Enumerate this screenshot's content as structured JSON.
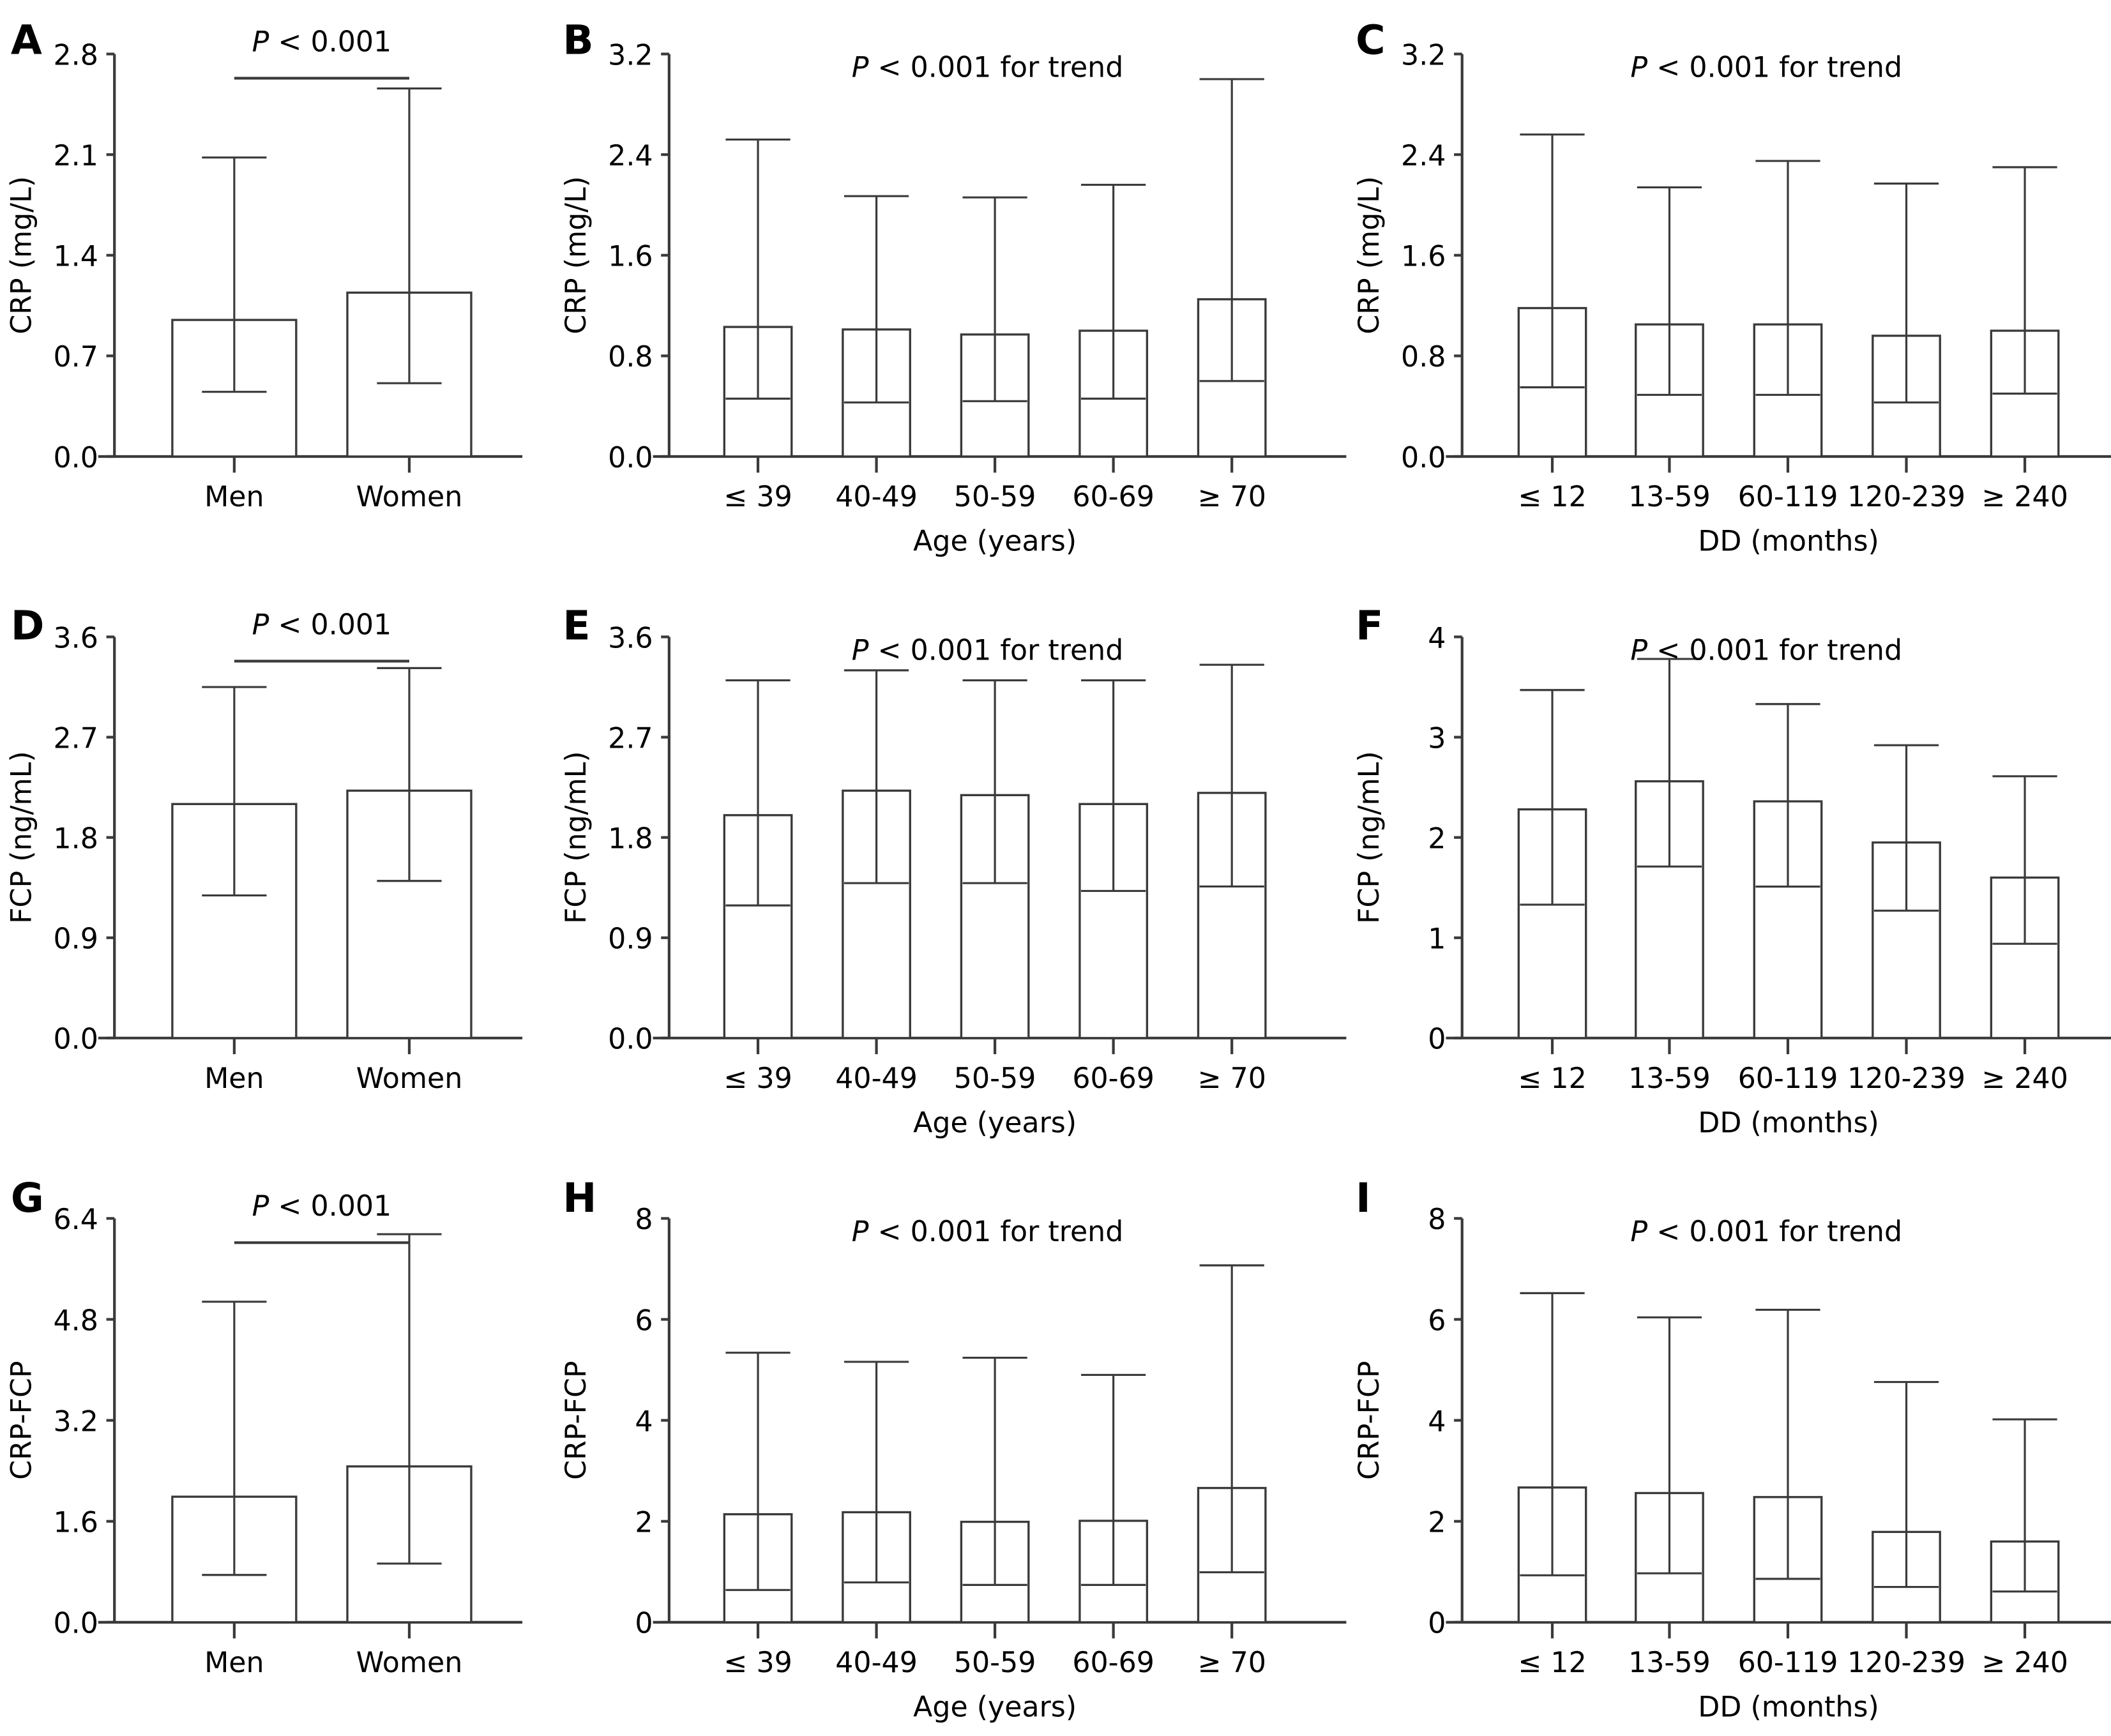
{
  "chart_data": [
    {
      "panel": "A",
      "type": "bar",
      "categories": [
        "Men",
        "Women"
      ],
      "values": [
        0.95,
        1.14
      ],
      "error_low": [
        0.45,
        0.51
      ],
      "error_high": [
        2.08,
        2.56
      ],
      "ylabel": "CRP (mg/L)",
      "xlabel": "",
      "yticks": [
        "0.0",
        "0.7",
        "1.4",
        "2.1",
        "2.8"
      ],
      "ylim": [
        0,
        2.8
      ],
      "annotation": {
        "p_italic": "P",
        "text": " < 0.001",
        "bracket": true
      }
    },
    {
      "panel": "B",
      "type": "bar",
      "categories": [
        "≤ 39",
        "40-49",
        "50-59",
        "60-69",
        "≥ 70"
      ],
      "values": [
        1.03,
        1.01,
        0.97,
        1.0,
        1.25
      ],
      "error_low": [
        0.46,
        0.43,
        0.44,
        0.46,
        0.6
      ],
      "error_high": [
        2.52,
        2.07,
        2.06,
        2.16,
        3.0
      ],
      "ylabel": "CRP (mg/L)",
      "xlabel": "Age (years)",
      "yticks": [
        "0.0",
        "0.8",
        "1.6",
        "2.4",
        "3.2"
      ],
      "ylim": [
        0,
        3.2
      ],
      "annotation": {
        "p_italic": "P",
        "text": " < 0.001 for trend",
        "bracket": false
      }
    },
    {
      "panel": "C",
      "type": "bar",
      "categories": [
        "≤ 12",
        "13-59",
        "60-119",
        "120-239",
        "≥ 240"
      ],
      "values": [
        1.18,
        1.05,
        1.05,
        0.96,
        1.0
      ],
      "error_low": [
        0.55,
        0.49,
        0.49,
        0.43,
        0.5
      ],
      "error_high": [
        2.56,
        2.14,
        2.35,
        2.17,
        2.3
      ],
      "ylabel": "CRP (mg/L)",
      "xlabel": "DD (months)",
      "yticks": [
        "0.0",
        "0.8",
        "1.6",
        "2.4",
        "3.2"
      ],
      "ylim": [
        0,
        3.2
      ],
      "annotation": {
        "p_italic": "P",
        "text": " < 0.001 for trend",
        "bracket": false
      }
    },
    {
      "panel": "D",
      "type": "bar",
      "categories": [
        "Men",
        "Women"
      ],
      "values": [
        2.1,
        2.22
      ],
      "error_low": [
        1.28,
        1.41
      ],
      "error_high": [
        3.15,
        3.32
      ],
      "ylabel": "FCP (ng/mL)",
      "xlabel": "",
      "yticks": [
        "0.0",
        "0.9",
        "1.8",
        "2.7",
        "3.6"
      ],
      "ylim": [
        0,
        3.6
      ],
      "annotation": {
        "p_italic": "P",
        "text": " < 0.001",
        "bracket": true
      }
    },
    {
      "panel": "E",
      "type": "bar",
      "categories": [
        "≤ 39",
        "40-49",
        "50-59",
        "60-69",
        "≥ 70"
      ],
      "values": [
        2.0,
        2.22,
        2.18,
        2.1,
        2.2
      ],
      "error_low": [
        1.19,
        1.39,
        1.39,
        1.32,
        1.36
      ],
      "error_high": [
        3.21,
        3.3,
        3.21,
        3.21,
        3.35
      ],
      "ylabel": "FCP (ng/mL)",
      "xlabel": "Age (years)",
      "yticks": [
        "0.0",
        "0.9",
        "1.8",
        "2.7",
        "3.6"
      ],
      "ylim": [
        0,
        3.6
      ],
      "annotation": {
        "p_italic": "P",
        "text": " < 0.001 for trend",
        "bracket": false
      }
    },
    {
      "panel": "F",
      "type": "bar",
      "categories": [
        "≤ 12",
        "13-59",
        "60-119",
        "120-239",
        "≥ 240"
      ],
      "values": [
        2.28,
        2.56,
        2.36,
        1.95,
        1.6
      ],
      "error_low": [
        1.33,
        1.71,
        1.51,
        1.27,
        0.94
      ],
      "error_high": [
        3.47,
        3.78,
        3.33,
        2.92,
        2.61
      ],
      "ylabel": "FCP (ng/mL)",
      "xlabel": "DD (months)",
      "yticks": [
        "0",
        "1",
        "2",
        "3",
        "4"
      ],
      "ylim": [
        0,
        4
      ],
      "annotation": {
        "p_italic": "P",
        "text": " < 0.001 for trend",
        "bracket": false
      }
    },
    {
      "panel": "G",
      "type": "bar",
      "categories": [
        "Men",
        "Women"
      ],
      "values": [
        1.99,
        2.47
      ],
      "error_low": [
        0.75,
        0.93
      ],
      "error_high": [
        5.08,
        6.15
      ],
      "ylabel": "CRP-FCP",
      "xlabel": "",
      "yticks": [
        "0.0",
        "1.6",
        "3.2",
        "4.8",
        "6.4"
      ],
      "ylim": [
        0,
        6.4
      ],
      "annotation": {
        "p_italic": "P",
        "text": " < 0.001",
        "bracket": true
      }
    },
    {
      "panel": "H",
      "type": "bar",
      "categories": [
        "≤ 39",
        "40-49",
        "50-59",
        "60-69",
        "≥ 70"
      ],
      "values": [
        2.14,
        2.18,
        1.99,
        2.01,
        2.66
      ],
      "error_low": [
        0.64,
        0.79,
        0.74,
        0.74,
        0.99
      ],
      "error_high": [
        5.34,
        5.16,
        5.24,
        4.9,
        7.07
      ],
      "ylabel": "CRP-FCP",
      "xlabel": "Age (years)",
      "yticks": [
        "0",
        "2",
        "4",
        "6",
        "8"
      ],
      "ylim": [
        0,
        8
      ],
      "annotation": {
        "p_italic": "P",
        "text": " < 0.001 for trend",
        "bracket": false
      }
    },
    {
      "panel": "I",
      "type": "bar",
      "categories": [
        "≤ 12",
        "13-59",
        "60-119",
        "120-239",
        "≥ 240"
      ],
      "values": [
        2.67,
        2.56,
        2.48,
        1.79,
        1.6
      ],
      "error_low": [
        0.93,
        0.97,
        0.86,
        0.7,
        0.61
      ],
      "error_high": [
        6.52,
        6.04,
        6.19,
        4.76,
        4.02
      ],
      "ylabel": "CRP-FCP",
      "xlabel": "DD (months)",
      "yticks": [
        "0",
        "2",
        "4",
        "6",
        "8"
      ],
      "ylim": [
        0,
        8
      ],
      "annotation": {
        "p_italic": "P",
        "text": " < 0.001 for trend",
        "bracket": false
      }
    }
  ]
}
